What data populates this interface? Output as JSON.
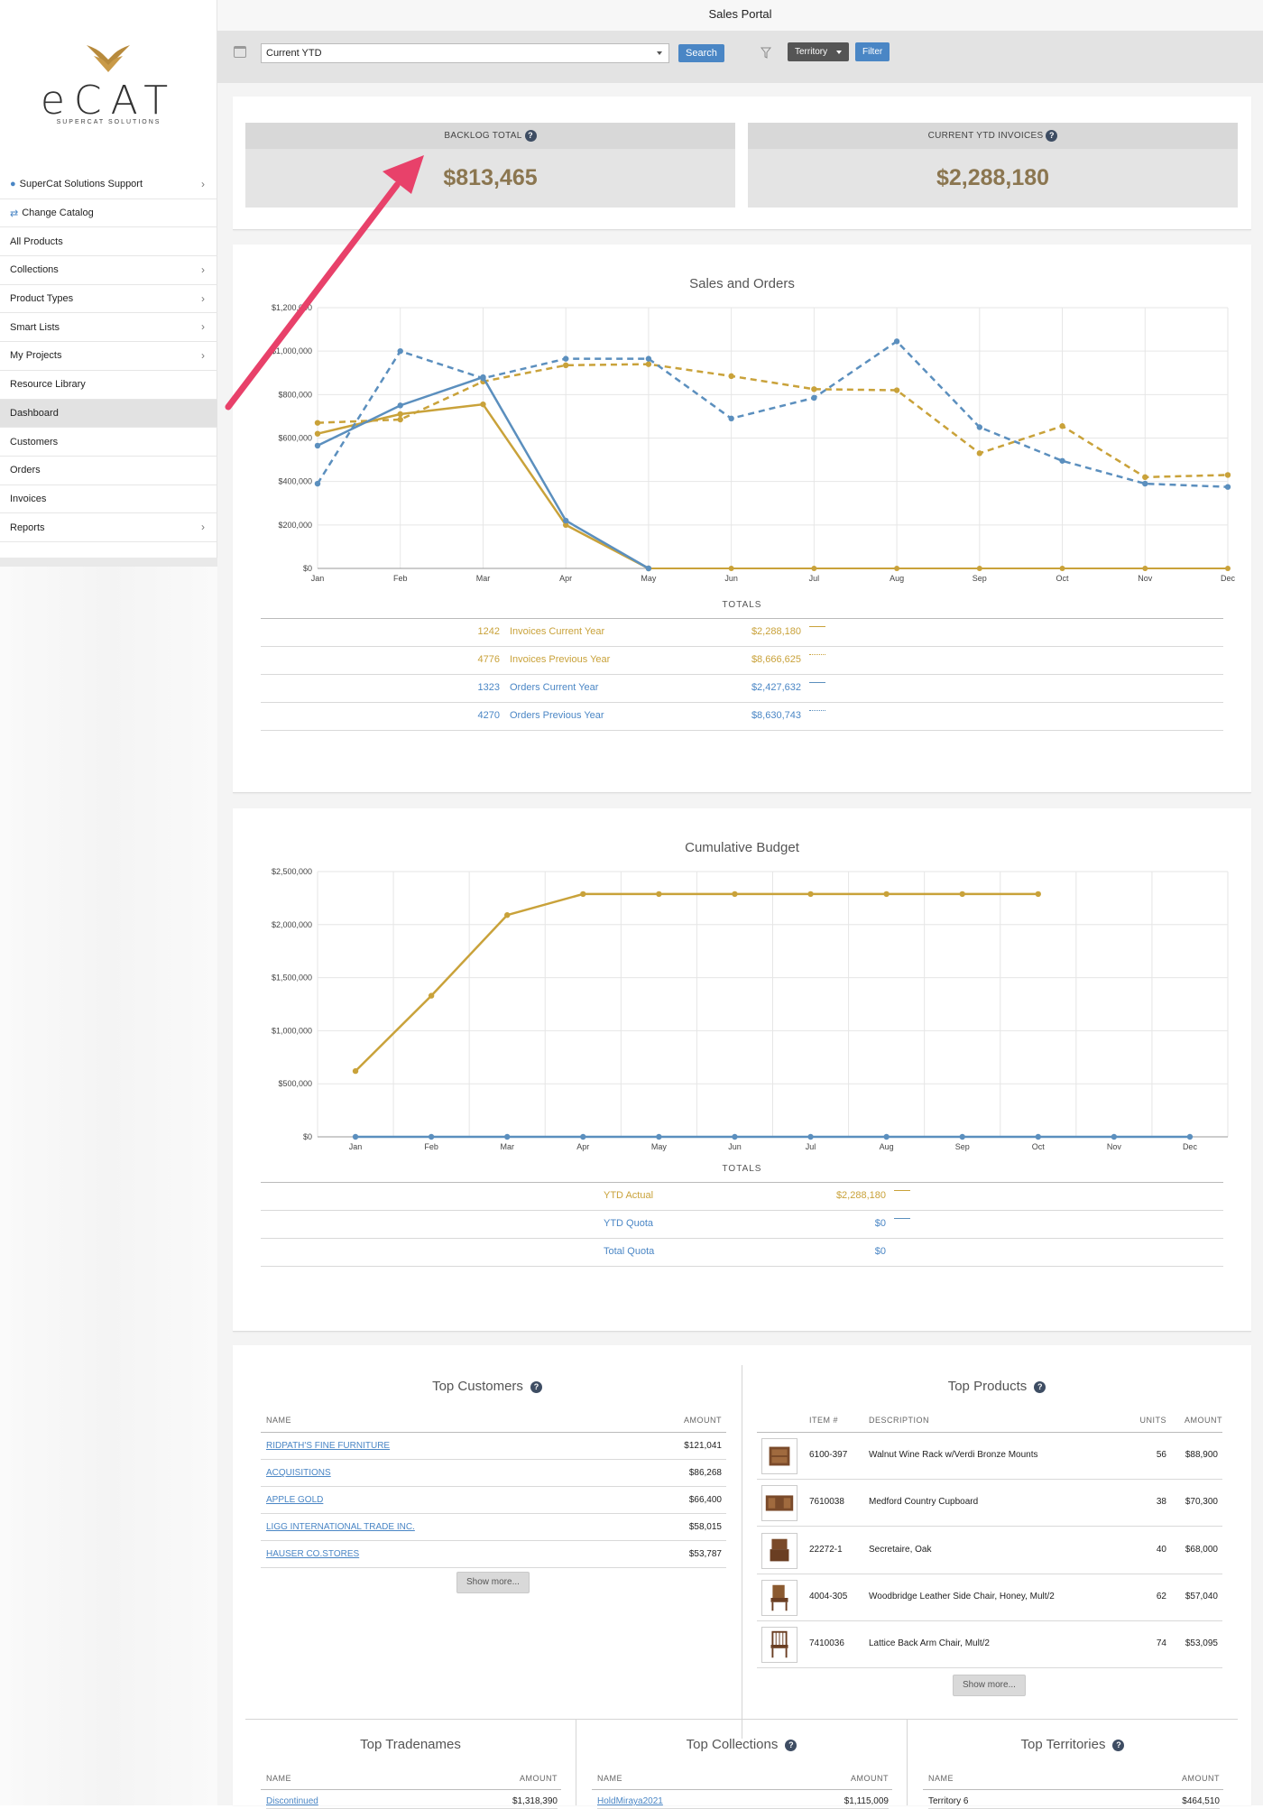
{
  "app": {
    "title": "Sales Portal"
  },
  "brand": {
    "name": "eCAT",
    "tagline": "SUPERCAT SOLUTIONS"
  },
  "sidebar": {
    "items": [
      {
        "label": "SuperCat Solutions Support",
        "chevron": true,
        "icon": "user-icon"
      },
      {
        "label": "Change Catalog",
        "chevron": false,
        "icon": "swap-icon"
      },
      {
        "label": "All Products",
        "chevron": false
      },
      {
        "label": "Collections",
        "chevron": true
      },
      {
        "label": "Product Types",
        "chevron": true
      },
      {
        "label": "Smart Lists",
        "chevron": true
      },
      {
        "label": "My Projects",
        "chevron": true
      },
      {
        "label": "Resource Library",
        "chevron": false
      },
      {
        "label": "Dashboard",
        "chevron": false,
        "active": true
      },
      {
        "label": "Customers",
        "chevron": false
      },
      {
        "label": "Orders",
        "chevron": false
      },
      {
        "label": "Invoices",
        "chevron": false
      },
      {
        "label": "Reports",
        "chevron": true
      }
    ]
  },
  "toolbar": {
    "period": "Current YTD",
    "search_label": "Search",
    "territory_label": "Territory",
    "filter_label": "Filter"
  },
  "kpis": [
    {
      "label": "BACKLOG TOTAL",
      "value": "$813,465"
    },
    {
      "label": "CURRENT YTD INVOICES",
      "value": "$2,288,180"
    }
  ],
  "colors": {
    "gold": "#c9a23a",
    "blue": "#5b8fbe",
    "kpi_value": "#8b7650",
    "annotation_arrow": "#e8416a"
  },
  "sales_chart": {
    "totals_label": "TOTALS",
    "totals": [
      {
        "count": "1242",
        "label": "Invoices Current Year",
        "amount": "$2,288,180",
        "color": "gold",
        "style": "solid"
      },
      {
        "count": "4776",
        "label": "Invoices Previous Year",
        "amount": "$8,666,625",
        "color": "gold",
        "style": "dotted"
      },
      {
        "count": "1323",
        "label": "Orders Current Year",
        "amount": "$2,427,632",
        "color": "blue",
        "style": "solid"
      },
      {
        "count": "4270",
        "label": "Orders Previous Year",
        "amount": "$8,630,743",
        "color": "blue",
        "style": "dotted"
      }
    ]
  },
  "budget_chart": {
    "totals_label": "TOTALS",
    "totals": [
      {
        "label": "YTD Actual",
        "amount": "$2,288,180",
        "color": "gold",
        "swatch": true
      },
      {
        "label": "YTD Quota",
        "amount": "$0",
        "color": "blue",
        "swatch": true
      },
      {
        "label": "Total Quota",
        "amount": "$0",
        "color": "blue",
        "swatch": false
      }
    ]
  },
  "chart_data": [
    {
      "type": "line",
      "title": "Sales and Orders",
      "x": [
        "Jan",
        "Feb",
        "Mar",
        "Apr",
        "May",
        "Jun",
        "Jul",
        "Aug",
        "Sep",
        "Oct",
        "Nov",
        "Dec"
      ],
      "yticks": [
        "$0",
        "$200,000",
        "$400,000",
        "$600,000",
        "$800,000",
        "$1,000,000",
        "$1,200,000"
      ],
      "ylim": [
        0,
        1200000
      ],
      "grid": true,
      "series": [
        {
          "name": "Invoices Current Year",
          "color": "gold",
          "dashed": false,
          "values": [
            620000,
            710000,
            755000,
            200000,
            0,
            null,
            null,
            null,
            null,
            null,
            null,
            null
          ]
        },
        {
          "name": "Invoices Previous Year",
          "color": "gold",
          "dashed": true,
          "values": [
            670000,
            685000,
            860000,
            935000,
            940000,
            885000,
            825000,
            820000,
            530000,
            655000,
            420000,
            430000
          ]
        },
        {
          "name": "Orders Current Year",
          "color": "blue",
          "dashed": false,
          "values": [
            565000,
            750000,
            880000,
            220000,
            0,
            null,
            null,
            null,
            null,
            null,
            null,
            null
          ]
        },
        {
          "name": "Orders Previous Year",
          "color": "blue",
          "dashed": true,
          "values": [
            390000,
            1000000,
            875000,
            965000,
            965000,
            690000,
            785000,
            1045000,
            650000,
            495000,
            390000,
            375000
          ]
        }
      ],
      "zero_line": {
        "color": "gold",
        "from": 4,
        "to": 11
      }
    },
    {
      "type": "line",
      "title": "Cumulative Budget",
      "x": [
        "Jan",
        "Feb",
        "Mar",
        "Apr",
        "May",
        "Jun",
        "Jul",
        "Aug",
        "Sep",
        "Oct",
        "Nov",
        "Dec"
      ],
      "yticks": [
        "$0",
        "$500,000",
        "$1,000,000",
        "$1,500,000",
        "$2,000,000",
        "$2,500,000"
      ],
      "ylim": [
        0,
        2500000
      ],
      "grid": true,
      "series": [
        {
          "name": "YTD Actual",
          "color": "gold",
          "dashed": false,
          "values": [
            620000,
            1330000,
            2090000,
            2288180,
            2288180,
            2288180,
            2288180,
            2288180,
            2288180,
            2288180,
            null,
            null
          ]
        },
        {
          "name": "YTD Quota",
          "color": "blue",
          "dashed": false,
          "values": [
            0,
            0,
            0,
            0,
            0,
            0,
            0,
            0,
            0,
            0,
            0,
            0
          ]
        }
      ]
    }
  ],
  "top_customers": {
    "title": "Top Customers",
    "headers": [
      "NAME",
      "AMOUNT"
    ],
    "rows": [
      {
        "name": "RIDPATH'S FINE FURNITURE",
        "amount": "$121,041"
      },
      {
        "name": "ACQUISITIONS",
        "amount": "$86,268"
      },
      {
        "name": "APPLE GOLD",
        "amount": "$66,400"
      },
      {
        "name": "LIGG INTERNATIONAL TRADE INC.",
        "amount": "$58,015"
      },
      {
        "name": "HAUSER CO.STORES",
        "amount": "$53,787"
      }
    ],
    "show_more": "Show more..."
  },
  "top_products": {
    "title": "Top Products",
    "headers": [
      "ITEM #",
      "DESCRIPTION",
      "UNITS",
      "AMOUNT"
    ],
    "rows": [
      {
        "item": "6100-397",
        "description": "Walnut Wine Rack w/Verdi Bronze Mounts",
        "units": "56",
        "amount": "$88,900",
        "thumb": "cabinet"
      },
      {
        "item": "7610038",
        "description": "Medford Country Cupboard",
        "units": "38",
        "amount": "$70,300",
        "thumb": "cupboard"
      },
      {
        "item": "22272-1",
        "description": "Secretaire, Oak",
        "units": "40",
        "amount": "$68,000",
        "thumb": "desk"
      },
      {
        "item": "4004-305",
        "description": "Woodbridge Leather Side Chair, Honey, Mult/2",
        "units": "62",
        "amount": "$57,040",
        "thumb": "chair"
      },
      {
        "item": "7410036",
        "description": "Lattice Back Arm Chair, Mult/2",
        "units": "74",
        "amount": "$53,095",
        "thumb": "armchair"
      }
    ],
    "show_more": "Show more..."
  },
  "top_tradenames": {
    "title": "Top Tradenames",
    "headers": [
      "NAME",
      "AMOUNT"
    ],
    "rows": [
      {
        "name": "Discontinued",
        "amount": "$1,318,390"
      }
    ]
  },
  "top_collections": {
    "title": "Top Collections",
    "headers": [
      "NAME",
      "AMOUNT"
    ],
    "rows": [
      {
        "name": "HoldMiraya2021",
        "amount": "$1,115,009"
      }
    ]
  },
  "top_territories": {
    "title": "Top Territories",
    "headers": [
      "NAME",
      "AMOUNT"
    ],
    "rows": [
      {
        "name": "Territory 6",
        "amount": "$464,510"
      }
    ]
  }
}
